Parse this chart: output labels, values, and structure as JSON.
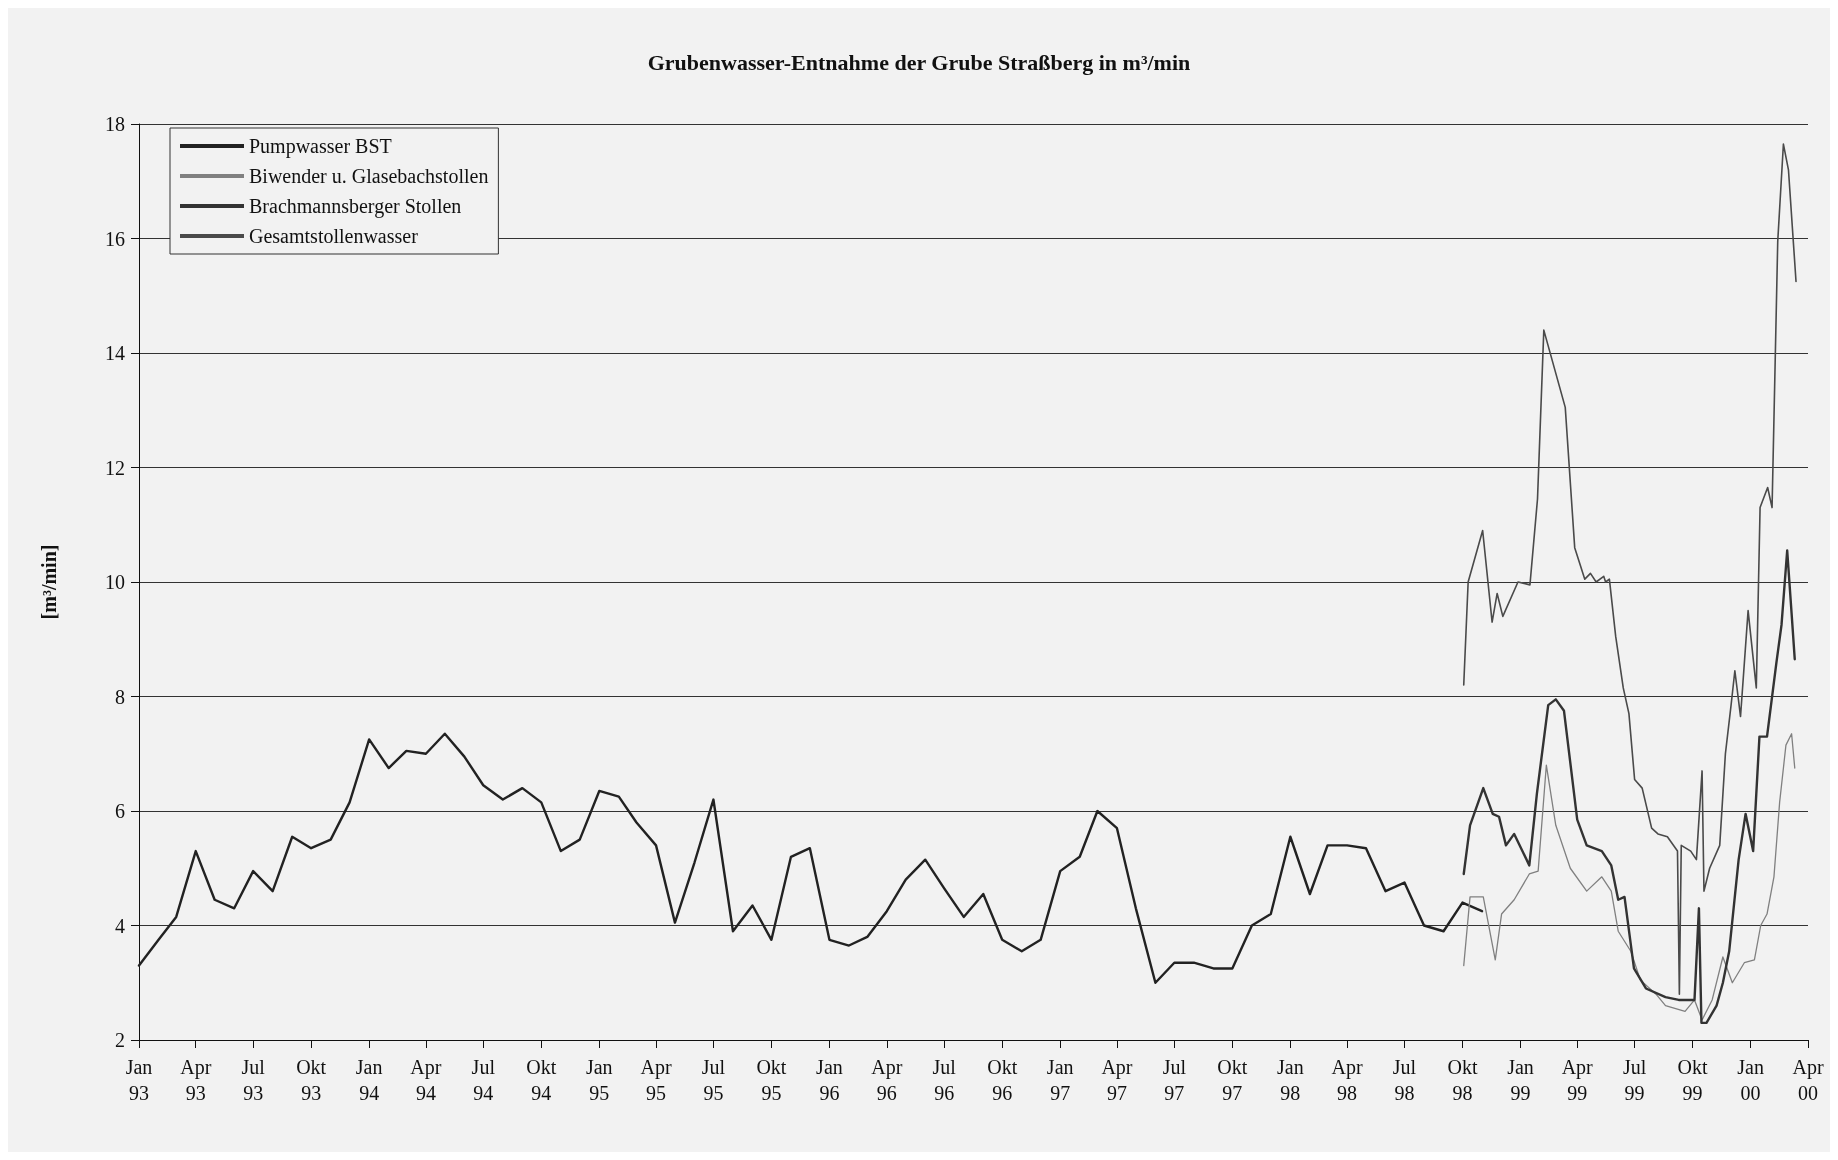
{
  "chart_data": {
    "type": "line",
    "title": "Grubenwasser-Entnahme der Grube Straßberg in m³/min",
    "ylabel": "[m³/min]",
    "xlim": [
      "1993-01",
      "2000-04"
    ],
    "xticks": [
      {
        "value": "1993-01",
        "label": "Jan\n93"
      },
      {
        "value": "1993-04",
        "label": "Apr\n93"
      },
      {
        "value": "1993-07",
        "label": "Jul\n93"
      },
      {
        "value": "1993-10",
        "label": "Okt\n93"
      },
      {
        "value": "1994-01",
        "label": "Jan\n94"
      },
      {
        "value": "1994-04",
        "label": "Apr\n94"
      },
      {
        "value": "1994-07",
        "label": "Jul\n94"
      },
      {
        "value": "1994-10",
        "label": "Okt\n94"
      },
      {
        "value": "1995-01",
        "label": "Jan\n95"
      },
      {
        "value": "1995-04",
        "label": "Apr\n95"
      },
      {
        "value": "1995-07",
        "label": "Jul\n95"
      },
      {
        "value": "1995-10",
        "label": "Okt\n95"
      },
      {
        "value": "1996-01",
        "label": "Jan\n96"
      },
      {
        "value": "1996-04",
        "label": "Apr\n96"
      },
      {
        "value": "1996-07",
        "label": "Jul\n96"
      },
      {
        "value": "1996-10",
        "label": "Okt\n96"
      },
      {
        "value": "1997-01",
        "label": "Jan\n97"
      },
      {
        "value": "1997-04",
        "label": "Apr\n97"
      },
      {
        "value": "1997-07",
        "label": "Jul\n97"
      },
      {
        "value": "1997-10",
        "label": "Okt\n97"
      },
      {
        "value": "1998-01",
        "label": "Jan\n98"
      },
      {
        "value": "1998-04",
        "label": "Apr\n98"
      },
      {
        "value": "1998-07",
        "label": "Jul\n98"
      },
      {
        "value": "1998-10",
        "label": "Okt\n98"
      },
      {
        "value": "1999-01",
        "label": "Jan\n99"
      },
      {
        "value": "1999-04",
        "label": "Apr\n99"
      },
      {
        "value": "1999-07",
        "label": "Jul\n99"
      },
      {
        "value": "1999-10",
        "label": "Okt\n99"
      },
      {
        "value": "2000-01",
        "label": "Jan\n00"
      },
      {
        "value": "2000-04",
        "label": "Apr\n00"
      }
    ],
    "ylim": [
      2,
      18
    ],
    "yticks": [
      2,
      4,
      6,
      8,
      10,
      12,
      14,
      16,
      18
    ],
    "grid": "y",
    "legend": "top left",
    "marker": "none",
    "line_style": "solid",
    "series": [
      {
        "name": "Pumpwasser BST",
        "color": "#222222",
        "x": [
          "1993-01",
          "1993-02",
          "1993-03",
          "1993-04",
          "1993-05",
          "1993-06",
          "1993-07",
          "1993-08",
          "1993-09",
          "1993-10",
          "1993-11",
          "1993-12",
          "1994-01",
          "1994-02",
          "1994-03",
          "1994-04",
          "1994-05",
          "1994-06",
          "1994-07",
          "1994-08",
          "1994-09",
          "1994-10",
          "1994-11",
          "1994-12",
          "1995-01",
          "1995-02",
          "1995-03",
          "1995-04",
          "1995-05",
          "1995-06",
          "1995-07",
          "1995-08",
          "1995-09",
          "1995-10",
          "1995-11",
          "1995-12",
          "1996-01",
          "1996-02",
          "1996-03",
          "1996-04",
          "1996-05",
          "1996-06",
          "1996-07",
          "1996-08",
          "1996-09",
          "1996-10",
          "1996-11",
          "1996-12",
          "1997-01",
          "1997-02",
          "1997-03",
          "1997-04",
          "1997-05",
          "1997-06",
          "1997-07",
          "1997-08",
          "1997-09",
          "1997-10",
          "1997-11",
          "1997-12",
          "1998-01",
          "1998-02",
          "1998-03",
          "1998-04",
          "1998-05",
          "1998-06",
          "1998-07",
          "1998-08",
          "1998-09",
          "1998-10",
          "1998-11"
        ],
        "values": [
          3.3,
          3.75,
          4.15,
          5.3,
          4.45,
          4.3,
          4.95,
          4.6,
          5.55,
          5.35,
          5.5,
          6.15,
          7.25,
          6.75,
          7.05,
          7.0,
          7.35,
          6.95,
          6.45,
          6.2,
          6.4,
          6.15,
          5.3,
          5.5,
          6.35,
          6.25,
          5.8,
          5.4,
          4.05,
          5.1,
          6.2,
          3.9,
          4.35,
          3.75,
          5.2,
          5.35,
          3.75,
          3.65,
          3.8,
          4.25,
          4.8,
          5.15,
          4.65,
          4.15,
          4.55,
          3.75,
          3.55,
          3.75,
          4.95,
          5.2,
          6.0,
          5.7,
          4.3,
          3.0,
          3.35,
          3.35,
          3.25,
          3.25,
          4.0,
          4.2,
          5.55,
          4.55,
          5.4,
          5.4,
          5.35,
          4.6,
          4.75,
          4.0,
          3.9,
          4.4,
          4.25
        ]
      },
      {
        "name": "Biwender u. Glasebachstollen",
        "color": "#808080",
        "x": [
          "1998-10-03",
          "1998-10-13",
          "1998-11-03",
          "1998-11-22",
          "1998-12-02",
          "1998-12-22",
          "1999-01-15",
          "1999-01-29",
          "1999-02-11",
          "1999-02-26",
          "1999-03-21",
          "1999-04-16",
          "1999-05-10",
          "1999-05-25",
          "1999-06-05",
          "1999-06-25",
          "1999-07-10",
          "1999-08-04",
          "1999-08-19",
          "1999-09-19",
          "1999-10-04",
          "1999-10-16",
          "1999-11-01",
          "1999-11-18",
          "1999-12-03",
          "1999-12-22",
          "2000-01-07",
          "2000-01-17",
          "2000-01-27",
          "2000-02-07",
          "2000-02-16",
          "2000-02-26",
          "2000-03-06",
          "2000-03-11"
        ],
        "values": [
          3.3,
          4.5,
          4.5,
          3.4,
          4.2,
          4.45,
          4.9,
          4.95,
          6.8,
          5.75,
          5.0,
          4.6,
          4.85,
          4.6,
          3.9,
          3.55,
          3.05,
          2.8,
          2.6,
          2.5,
          2.7,
          2.35,
          2.7,
          3.45,
          3.0,
          3.35,
          3.4,
          4.0,
          4.2,
          4.85,
          6.15,
          7.15,
          7.35,
          6.75
        ]
      },
      {
        "name": "Brachmannsberger Stollen",
        "color": "#333333",
        "x": [
          "1998-10-03",
          "1998-10-13",
          "1998-11-03",
          "1998-11-18",
          "1998-11-28",
          "1998-12-09",
          "1998-12-22",
          "1999-01-15",
          "1999-01-27",
          "1999-02-14",
          "1999-02-26",
          "1999-03-11",
          "1999-04-01",
          "1999-04-16",
          "1999-05-10",
          "1999-05-25",
          "1999-06-05",
          "1999-06-15",
          "1999-06-30",
          "1999-07-19",
          "1999-08-19",
          "1999-09-09",
          "1999-10-04",
          "1999-10-11",
          "1999-10-15",
          "1999-10-23",
          "1999-11-08",
          "1999-11-18",
          "1999-11-28",
          "1999-12-13",
          "1999-12-24",
          "2000-01-05",
          "2000-01-15",
          "2000-01-27",
          "2000-02-11",
          "2000-02-19",
          "2000-02-28",
          "2000-03-06",
          "2000-03-11"
        ],
        "values": [
          4.9,
          5.75,
          6.4,
          5.95,
          5.9,
          5.4,
          5.6,
          5.05,
          6.3,
          7.85,
          7.95,
          7.75,
          5.85,
          5.4,
          5.3,
          5.05,
          4.45,
          4.5,
          3.25,
          2.9,
          2.75,
          2.7,
          2.7,
          4.3,
          2.3,
          2.3,
          2.6,
          3.0,
          3.55,
          5.15,
          5.95,
          5.3,
          7.3,
          7.3,
          8.6,
          9.25,
          10.55,
          9.45,
          8.65
        ]
      },
      {
        "name": "Gesamtstollenwasser",
        "color": "#4a4a4a",
        "x": [
          "1998-10-03",
          "1998-10-10",
          "1998-11-02",
          "1998-11-17",
          "1998-11-25",
          "1998-12-04",
          "1998-12-28",
          "1999-01-16",
          "1999-01-28",
          "1999-02-07",
          "1999-03-13",
          "1999-03-28",
          "1999-04-13",
          "1999-04-22",
          "1999-05-01",
          "1999-05-13",
          "1999-05-16",
          "1999-05-22",
          "1999-06-01",
          "1999-06-13",
          "1999-06-22",
          "1999-07-01",
          "1999-07-13",
          "1999-07-28",
          "1999-08-07",
          "1999-08-22",
          "1999-09-07",
          "1999-09-10",
          "1999-09-13",
          "1999-09-28",
          "1999-10-07",
          "1999-10-16",
          "1999-10-19",
          "1999-10-28",
          "1999-11-13",
          "1999-11-22",
          "1999-12-01",
          "1999-12-07",
          "1999-12-16",
          "1999-12-28",
          "2000-01-10",
          "2000-01-16",
          "2000-01-28",
          "2000-02-04",
          "2000-02-13",
          "2000-02-22",
          "2000-03-01",
          "2000-03-13"
        ],
        "values": [
          8.2,
          10.0,
          10.9,
          9.3,
          9.8,
          9.4,
          10.0,
          9.95,
          11.45,
          14.4,
          13.05,
          10.6,
          10.05,
          10.15,
          10.0,
          10.1,
          10.0,
          10.05,
          9.05,
          8.15,
          7.7,
          6.55,
          6.4,
          5.7,
          5.6,
          5.55,
          5.3,
          2.8,
          5.4,
          5.3,
          5.15,
          6.7,
          4.6,
          5.0,
          5.4,
          7.0,
          7.85,
          8.45,
          7.65,
          9.5,
          8.15,
          11.3,
          11.65,
          11.3,
          15.95,
          17.65,
          17.2,
          15.25
        ]
      }
    ]
  }
}
